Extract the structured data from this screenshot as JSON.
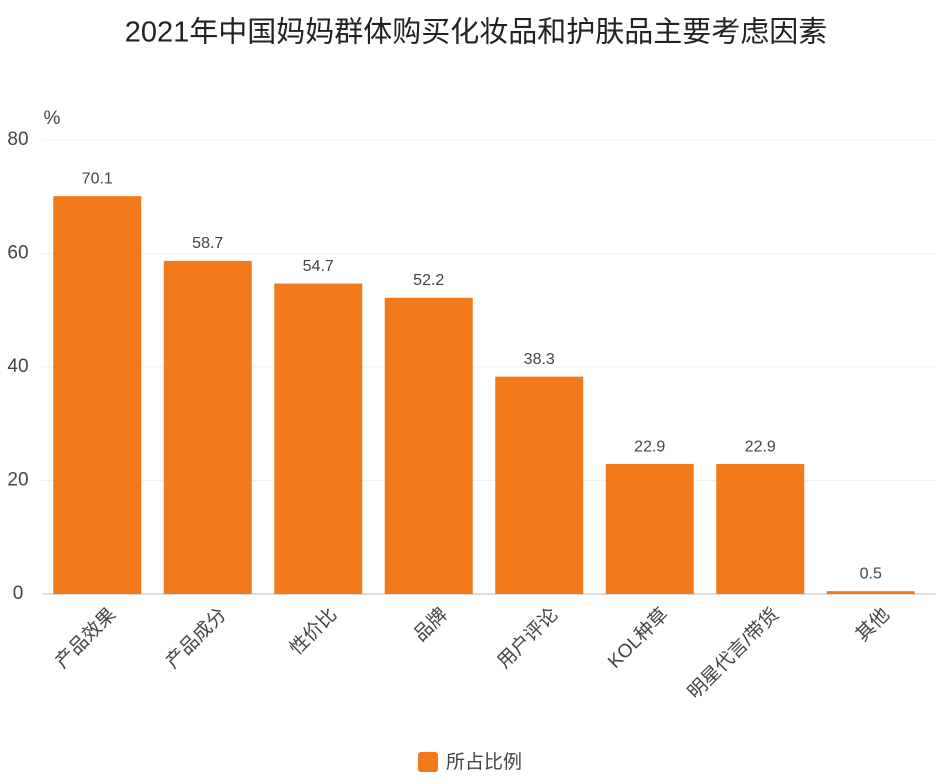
{
  "chart_data": {
    "type": "bar",
    "title": "2021年中国妈妈群体购买化妆品和护肤品主要考虑因素",
    "y_label": "%",
    "categories": [
      "产品效果",
      "产品成分",
      "性价比",
      "品牌",
      "用户评论",
      "KOL种草",
      "明星代言/带货",
      "其他"
    ],
    "series": [
      {
        "name": "所占比例",
        "color": "#f27a1a",
        "values": [
          70.1,
          58.7,
          54.7,
          52.2,
          38.3,
          22.9,
          22.9,
          0.5
        ]
      }
    ],
    "ylim": [
      0,
      80
    ],
    "yticks": [
      0,
      20,
      40,
      60,
      80
    ],
    "grid": true,
    "legend": "bottom"
  }
}
